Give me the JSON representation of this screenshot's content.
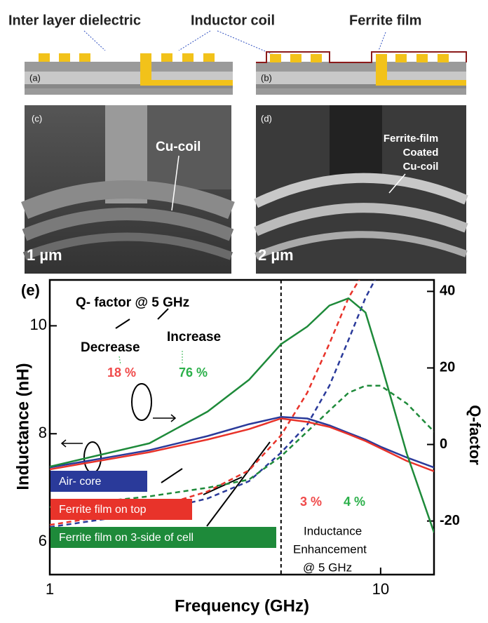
{
  "panels": {
    "top_labels": [
      "Inter layer dielectric",
      "Inductor coil",
      "Ferrite film"
    ],
    "labels": [
      "(a)",
      "(b)",
      "(c)",
      "(d)"
    ],
    "sem_c": {
      "annotation": "Cu-coil",
      "scale": "1 µm"
    },
    "sem_d": {
      "annotation": [
        "Ferrite-film",
        "Coated",
        "Cu-coil"
      ],
      "scale": "2 µm"
    }
  },
  "chart_data": {
    "type": "line",
    "panel_label": "(e)",
    "x_label": "Frequency (GHz)",
    "y_label": "Inductance (nH)",
    "y2_label": "Q-factor",
    "x": [
      1,
      2,
      3,
      4,
      5,
      6,
      7,
      8,
      9,
      10,
      12,
      14.5
    ],
    "xlim": [
      1,
      14.5
    ],
    "xticks": [
      1,
      10
    ],
    "xscale": "log",
    "ylim": [
      5.39,
      10.85
    ],
    "yticks": [
      6,
      8,
      10
    ],
    "y2lim": [
      -34,
      43
    ],
    "y2ticks": [
      -20,
      0,
      20,
      40
    ],
    "vline": 5,
    "series": [
      {
        "name": "Air- core",
        "color": "#2a3a9a",
        "dashed": true,
        "values": [
          6.27,
          6.54,
          6.8,
          7.12,
          7.65,
          8.17,
          8.89,
          9.74,
          10.52,
          11.05,
          null,
          null
        ]
      },
      {
        "name": "Ferrite film on top",
        "color": "#e8332a",
        "dashed": true,
        "values": [
          6.31,
          6.6,
          6.93,
          7.32,
          7.97,
          8.76,
          9.67,
          10.52,
          11.05,
          null,
          null,
          null
        ]
      },
      {
        "name": "Ferrite film on 3-side of cell",
        "color": "#1e8a3a",
        "dashed": true,
        "values": [
          6.64,
          6.84,
          7.0,
          7.15,
          7.58,
          8.04,
          8.43,
          8.76,
          8.89,
          8.89,
          8.56,
          8.04
        ]
      },
      {
        "color": "#2a3a9a",
        "axis": "y2",
        "values": [
          -6,
          -1.5,
          2.2,
          5.3,
          7.2,
          6.8,
          5,
          3,
          1.3,
          -0.6,
          -3.4,
          -6
        ]
      },
      {
        "color": "#e8332a",
        "axis": "y2",
        "values": [
          -6.5,
          -2,
          1.3,
          4,
          6.8,
          5.9,
          4.6,
          2.7,
          0.9,
          -1,
          -4.3,
          -7
        ]
      },
      {
        "color": "#1e8a3a",
        "axis": "y2",
        "values": [
          -5.8,
          0.3,
          8.6,
          16.9,
          26.2,
          30.8,
          36.3,
          38.2,
          34.5,
          21.5,
          -2.4,
          -23
        ]
      }
    ],
    "annotations": [
      "Q- factor @ 5 GHz",
      "Decrease",
      "Increase",
      "18 %",
      "76 %",
      "3 %",
      "4 %",
      "Inductance",
      "Enhancement",
      "@ 5 GHz"
    ]
  }
}
